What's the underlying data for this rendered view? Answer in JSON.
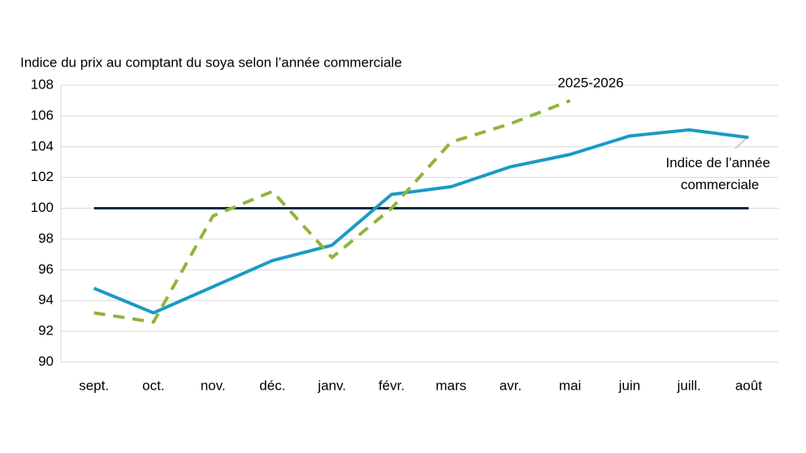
{
  "chart_data": {
    "type": "line",
    "title": "Indice du prix au comptant du soya selon l’année commerciale",
    "categories": [
      "sept.",
      "oct.",
      "nov.",
      "déc.",
      "janv.",
      "févr.",
      "mars",
      "avr.",
      "mai",
      "juin",
      "juill.",
      "août"
    ],
    "series": [
      {
        "name": "Indice de l’année commerciale",
        "color": "#1b9ac4",
        "dashed": false,
        "values": [
          94.8,
          93.2,
          94.9,
          96.6,
          97.6,
          100.9,
          101.4,
          102.7,
          103.5,
          104.7,
          105.1,
          104.6
        ]
      },
      {
        "name": "2025-2026",
        "color": "#8fb53a",
        "dashed": true,
        "values": [
          93.2,
          92.6,
          99.5,
          101.1,
          96.8,
          100.0,
          104.3,
          105.5,
          107.0,
          null,
          null,
          null
        ]
      }
    ],
    "reference_line": {
      "value": 100,
      "color": "#0c2a44"
    },
    "ylim": [
      90,
      108
    ],
    "yticks": [
      90,
      92,
      94,
      96,
      98,
      100,
      102,
      104,
      106,
      108
    ],
    "grid": true
  }
}
